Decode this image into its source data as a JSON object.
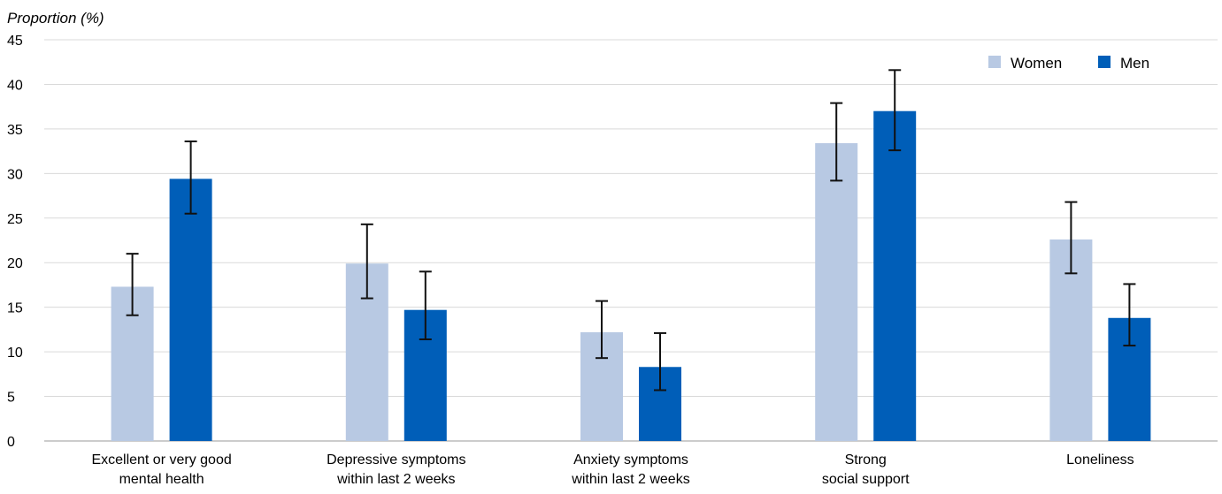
{
  "chart_data": {
    "type": "bar",
    "ylabel": "Proportion (%)",
    "ylim": [
      0,
      45
    ],
    "yticks": [
      0,
      5,
      10,
      15,
      20,
      25,
      30,
      35,
      40,
      45
    ],
    "grid": true,
    "legend_position": "top-right",
    "categories": [
      [
        "Excellent or very good",
        "mental health"
      ],
      [
        "Depressive symptoms",
        "within last 2 weeks"
      ],
      [
        "Anxiety symptoms",
        "within last 2 weeks"
      ],
      [
        "Strong",
        "social support"
      ],
      [
        "Loneliness"
      ]
    ],
    "series": [
      {
        "name": "Women",
        "color": "#b8c9e3",
        "values": [
          17.3,
          19.9,
          12.2,
          33.4,
          22.6
        ],
        "ci_low": [
          14.1,
          16.0,
          9.3,
          29.2,
          18.8
        ],
        "ci_high": [
          21.0,
          24.3,
          15.7,
          37.9,
          26.8
        ]
      },
      {
        "name": "Men",
        "color": "#005eb8",
        "values": [
          29.4,
          14.7,
          8.3,
          37.0,
          13.8
        ],
        "ci_low": [
          25.5,
          11.4,
          5.7,
          32.6,
          10.7
        ],
        "ci_high": [
          33.6,
          19.0,
          12.1,
          41.6,
          17.6
        ]
      }
    ]
  }
}
